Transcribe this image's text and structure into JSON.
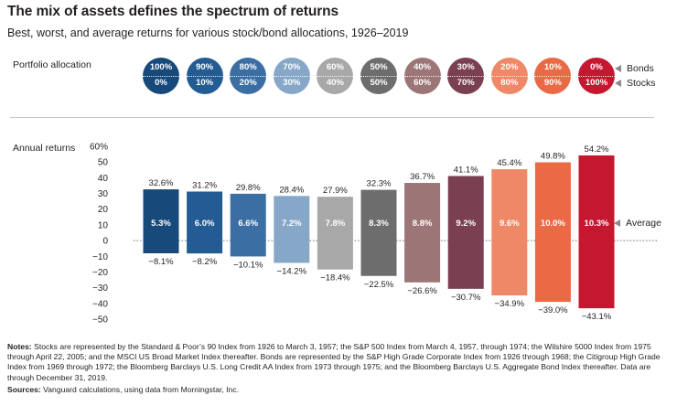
{
  "title": "The mix of assets defines the spectrum of returns",
  "subtitle": "Best, worst, and average returns for various stock/bond allocations, 1926–2019",
  "allocation_label": "Portfolio allocation",
  "returns_label": "Annual returns",
  "legend": {
    "bonds": "Bonds",
    "stocks": "Stocks",
    "average": "Average"
  },
  "allocations": [
    {
      "bonds": "100%",
      "stocks": "0%",
      "color": "#17497b"
    },
    {
      "bonds": "90%",
      "stocks": "10%",
      "color": "#235c92"
    },
    {
      "bonds": "80%",
      "stocks": "20%",
      "color": "#3b6fa3"
    },
    {
      "bonds": "70%",
      "stocks": "30%",
      "color": "#86a7c7"
    },
    {
      "bonds": "60%",
      "stocks": "40%",
      "color": "#a8a8a8"
    },
    {
      "bonds": "50%",
      "stocks": "50%",
      "color": "#6d6d6d"
    },
    {
      "bonds": "40%",
      "stocks": "60%",
      "color": "#9c7577"
    },
    {
      "bonds": "30%",
      "stocks": "70%",
      "color": "#7a3f50"
    },
    {
      "bonds": "20%",
      "stocks": "80%",
      "color": "#ef8866"
    },
    {
      "bonds": "10%",
      "stocks": "90%",
      "color": "#e96a45"
    },
    {
      "bonds": "0%",
      "stocks": "100%",
      "color": "#c5172f"
    }
  ],
  "notes_label": "Notes:",
  "notes_text": " Stocks are represented by the Standard & Poor’s 90 Index from 1926 to March 3, 1957; the S&P 500 Index from March 4, 1957, through 1974; the Wilshire 5000 Index from 1975 through April 22, 2005; and the MSCI US Broad Market Index thereafter. Bonds are represented by the S&P High Grade Corporate Index from 1926 through 1968; the Citigroup High Grade Index from 1969 through 1972; the Bloomberg Barclays U.S. Long Credit AA Index from 1973 through 1975; and the Bloomberg Barclays U.S. Aggregate Bond Index thereafter. Data are through December 31, 2019.",
  "sources_label": "Sources:",
  "sources_text": " Vanguard calculations, using data from Morningstar, Inc.",
  "chart_data": {
    "type": "bar",
    "title": "The mix of assets defines the spectrum of returns",
    "subtitle": "Best, worst, and average returns for various stock/bond allocations, 1926–2019",
    "ylabel": "Annual returns",
    "ylim": [
      -50,
      60
    ],
    "yticks": [
      60,
      50,
      40,
      30,
      20,
      10,
      0,
      -10,
      -20,
      -30,
      -40,
      -50
    ],
    "ytick_labels": [
      "60%",
      "50",
      "40",
      "30",
      "20",
      "10",
      "0",
      "−10",
      "−20",
      "−30",
      "−40",
      "−50"
    ],
    "categories": [
      "100% Bonds / 0% Stocks",
      "90% / 10%",
      "80% / 20%",
      "70% / 30%",
      "60% / 40%",
      "50% / 50%",
      "40% / 60%",
      "30% / 70%",
      "20% / 80%",
      "10% / 90%",
      "0% / 100%"
    ],
    "series": [
      {
        "name": "Best",
        "values": [
          32.6,
          31.2,
          29.8,
          28.4,
          27.9,
          32.3,
          36.7,
          41.1,
          45.4,
          49.8,
          54.2
        ],
        "labels": [
          "32.6%",
          "31.2%",
          "29.8%",
          "28.4%",
          "27.9%",
          "32.3%",
          "36.7%",
          "41.1%",
          "45.4%",
          "49.8%",
          "54.2%"
        ]
      },
      {
        "name": "Worst",
        "values": [
          -8.1,
          -8.2,
          -10.1,
          -14.2,
          -18.4,
          -22.5,
          -26.6,
          -30.7,
          -34.9,
          -39.0,
          -43.1
        ],
        "labels": [
          "−8.1%",
          "−8.2%",
          "−10.1%",
          "−14.2%",
          "−18.4%",
          "−22.5%",
          "−26.6%",
          "−30.7%",
          "−34.9%",
          "−39.0%",
          "−43.1%"
        ]
      },
      {
        "name": "Average",
        "values": [
          5.3,
          6.0,
          6.6,
          7.2,
          7.8,
          8.3,
          8.8,
          9.2,
          9.6,
          10.0,
          10.3
        ],
        "labels": [
          "5.3%",
          "6.0%",
          "6.6%",
          "7.2%",
          "7.8%",
          "8.3%",
          "8.8%",
          "9.2%",
          "9.6%",
          "10.0%",
          "10.3%"
        ]
      }
    ],
    "colors": [
      "#17497b",
      "#235c92",
      "#3b6fa3",
      "#86a7c7",
      "#a8a8a8",
      "#6d6d6d",
      "#9c7577",
      "#7a3f50",
      "#ef8866",
      "#e96a45",
      "#c5172f"
    ],
    "zero_line": "dotted",
    "grid": false
  }
}
